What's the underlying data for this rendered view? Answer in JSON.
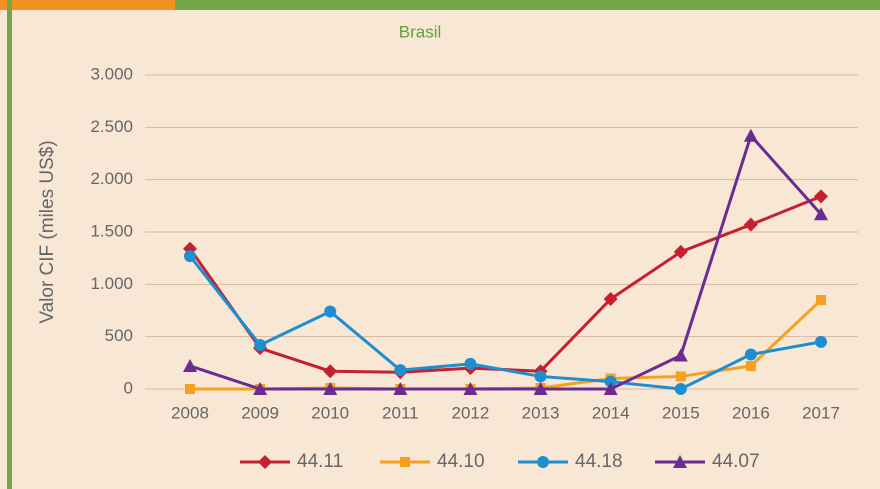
{
  "chart_data": {
    "type": "line",
    "title": "Brasil",
    "y_label": "Valor CIF (miles US$)",
    "categories": [
      "2008",
      "2009",
      "2010",
      "2011",
      "2012",
      "2013",
      "2014",
      "2015",
      "2016",
      "2017"
    ],
    "series": [
      {
        "name": "44.11",
        "color": "#c61f30",
        "marker": "diamond",
        "values": [
          1340,
          390,
          170,
          160,
          200,
          170,
          860,
          1310,
          1570,
          1840
        ]
      },
      {
        "name": "44.10",
        "color": "#f5a020",
        "marker": "square",
        "values": [
          0,
          0,
          10,
          0,
          0,
          10,
          100,
          120,
          220,
          850
        ]
      },
      {
        "name": "44.18",
        "color": "#1e8fce",
        "marker": "circle",
        "values": [
          1270,
          420,
          740,
          180,
          240,
          120,
          70,
          0,
          330,
          450
        ]
      },
      {
        "name": "44.07",
        "color": "#6a2c91",
        "marker": "triangle",
        "values": [
          220,
          0,
          0,
          0,
          0,
          0,
          0,
          320,
          2420,
          1670
        ]
      }
    ],
    "ylim": [
      0,
      3000
    ],
    "yticks": [
      0,
      500,
      {
        "value": 1000,
        "label": "1.000"
      },
      {
        "value": 1500,
        "label": "1.500"
      },
      {
        "value": 2000,
        "label": "2.000"
      },
      {
        "value": 2500,
        "label": "2.500"
      },
      {
        "value": 3000,
        "label": "3.000"
      }
    ],
    "grid": true
  }
}
